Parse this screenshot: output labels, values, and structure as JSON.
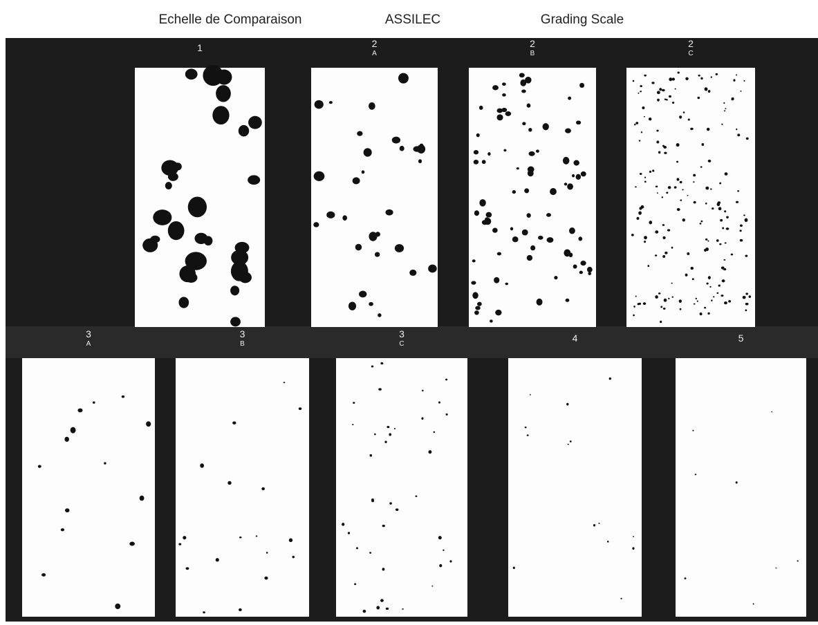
{
  "header": {
    "titles": [
      "Echelle de Comparaison",
      "ASSILEC",
      "Grading Scale"
    ]
  },
  "panels": [
    {
      "grade": "1"
    },
    {
      "grade": "2",
      "sub": "A"
    },
    {
      "grade": "2",
      "sub": "B"
    },
    {
      "grade": "2",
      "sub": "C"
    },
    {
      "grade": "3",
      "sub": "A"
    },
    {
      "grade": "3",
      "sub": "B"
    },
    {
      "grade": "3",
      "sub": "C"
    },
    {
      "grade": "4"
    },
    {
      "grade": "5"
    }
  ]
}
